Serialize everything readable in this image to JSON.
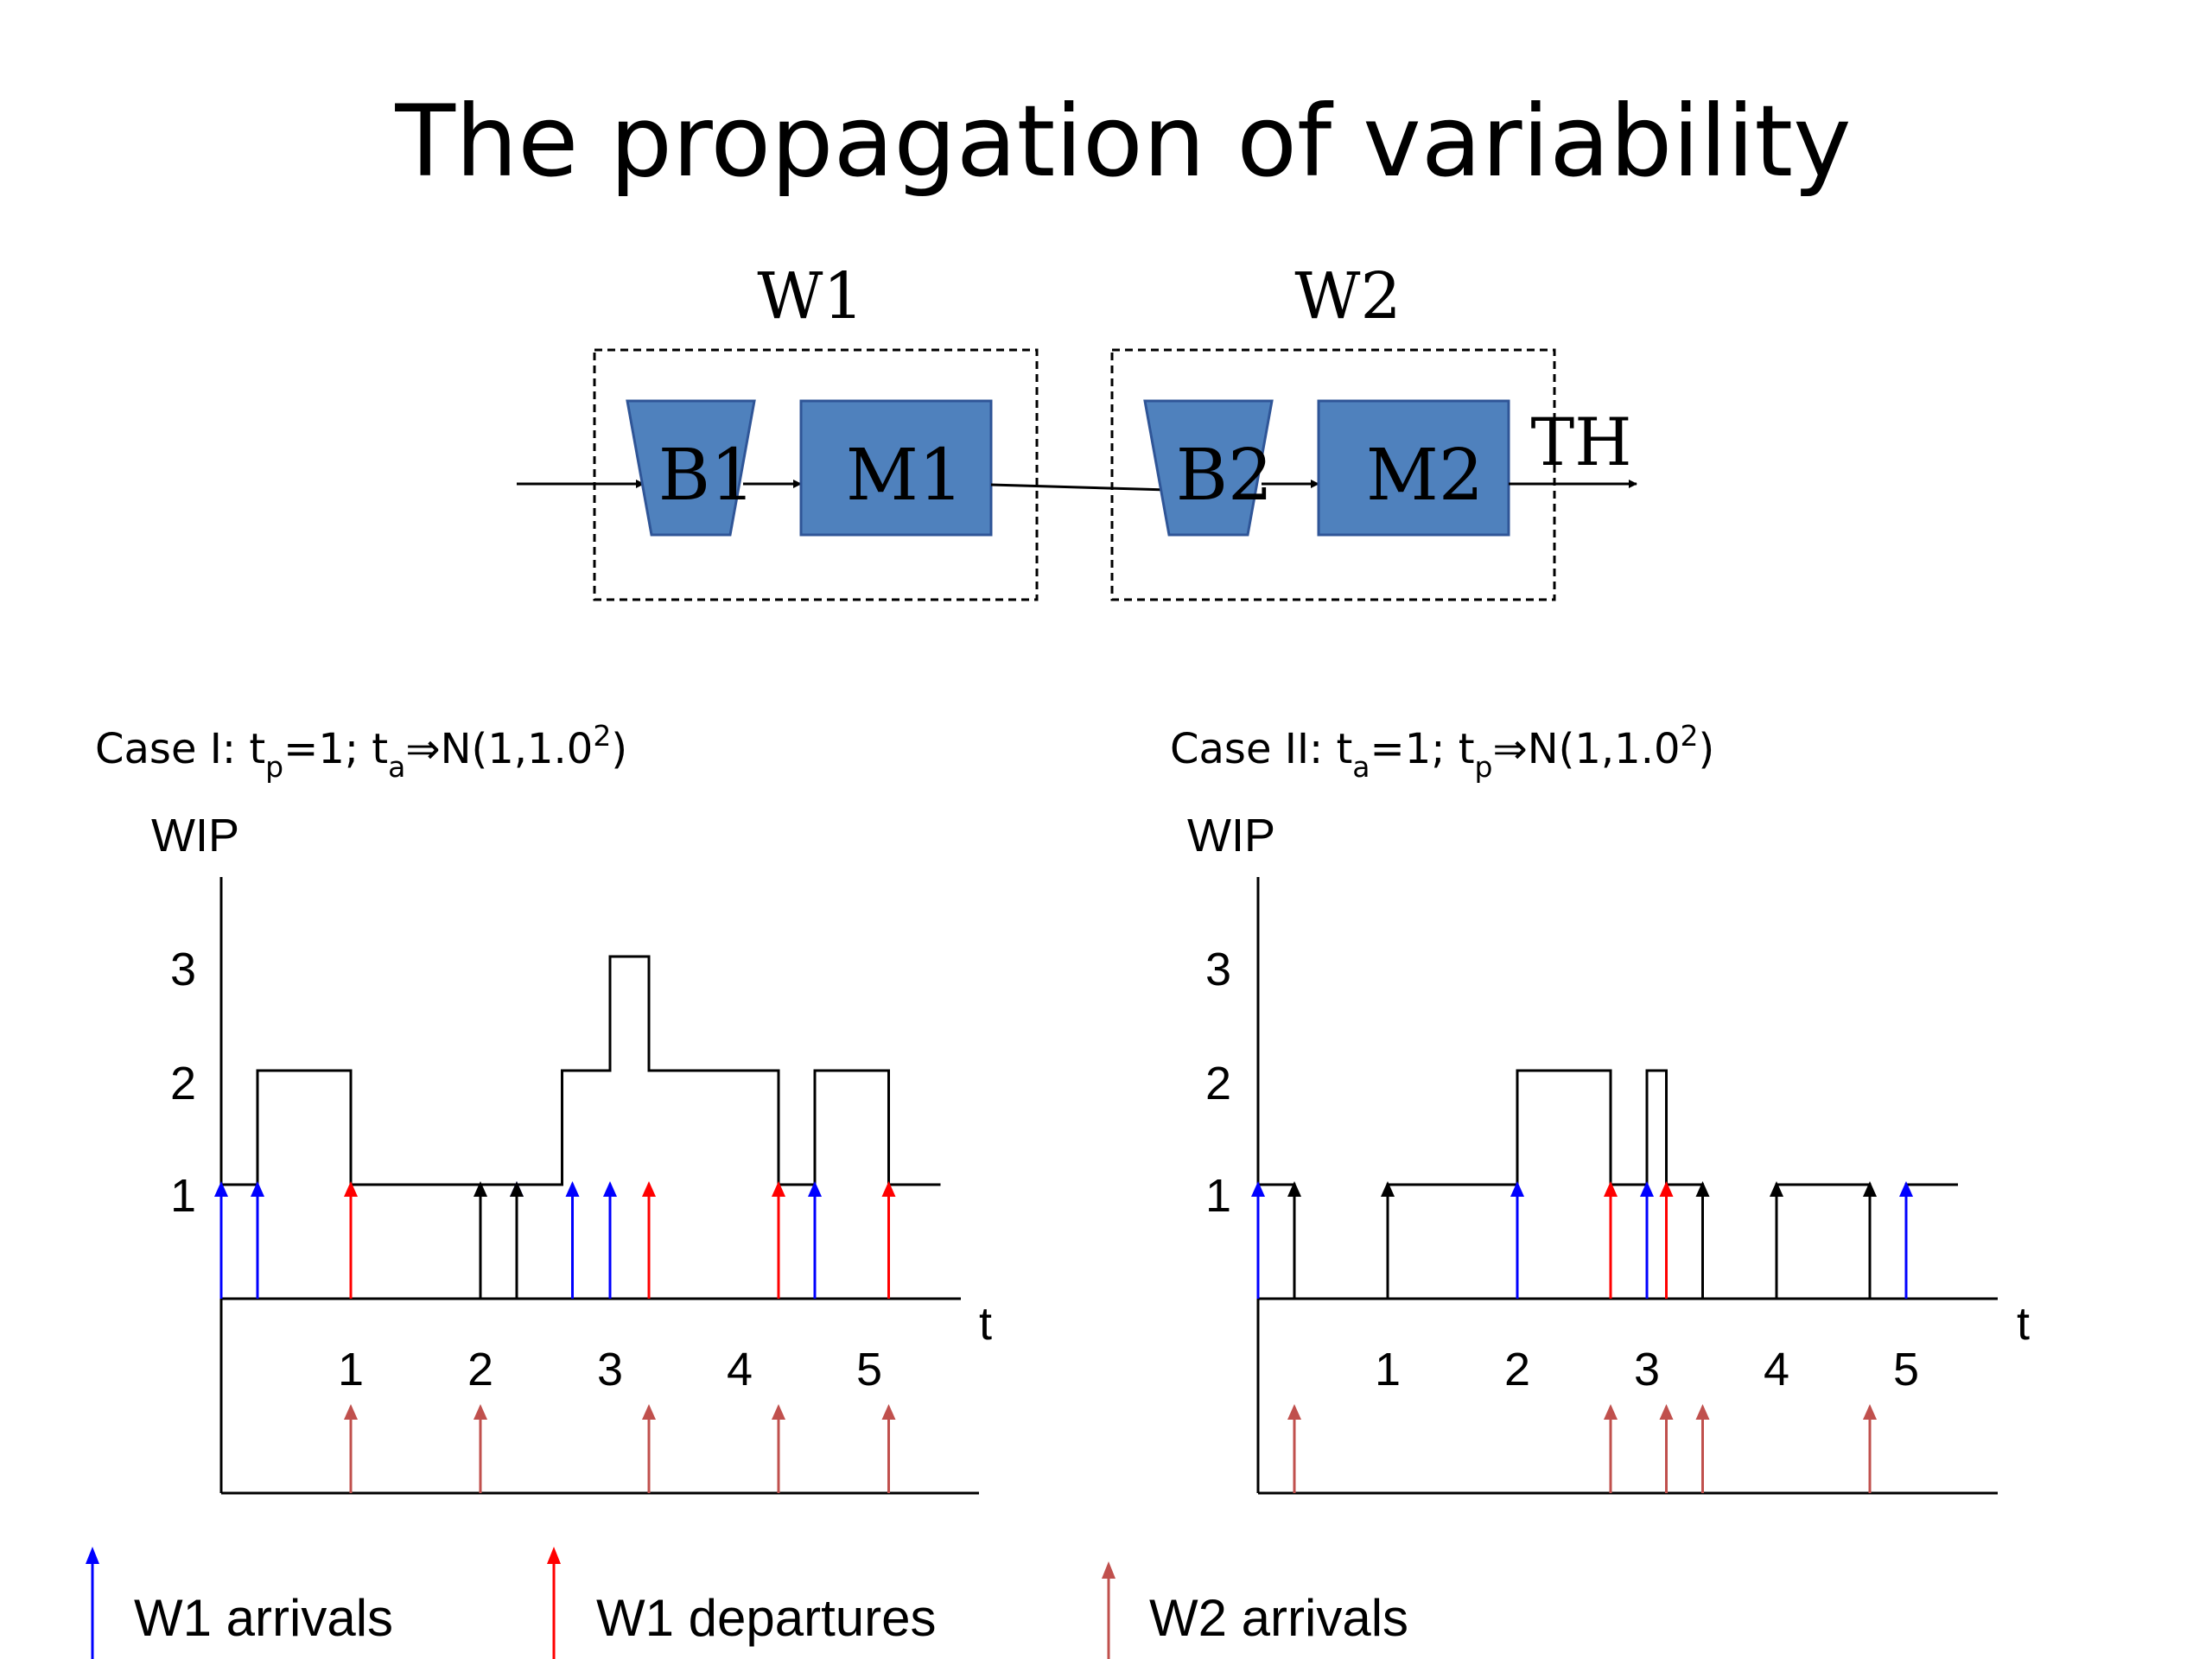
{
  "slide": {
    "title": "The propagation of variability"
  },
  "system": {
    "workstations": [
      {
        "label": "W1",
        "buffer": "B1",
        "machine": "M1"
      },
      {
        "label": "W2",
        "buffer": "B2",
        "machine": "M2"
      }
    ],
    "output_label": "TH",
    "box_color": "#4f81bd"
  },
  "colors": {
    "w1_arrivals": "#0000ff",
    "w1_departures": "#ff0000",
    "w2_arrivals": "#c0504d",
    "coincident": "#000000"
  },
  "chart_data": [
    {
      "type": "line",
      "case_label": {
        "prefix": "Case I: t",
        "sub1": "p",
        "mid": "=1; t",
        "sub2": "a",
        "rest": "⇒N(1,1.0",
        "sup": "2",
        "end": ")"
      },
      "ylabel": "WIP",
      "xlabel": "t",
      "y_ticks": [
        "1",
        "2",
        "3"
      ],
      "x_ticks": [
        "1",
        "2",
        "3",
        "4",
        "5"
      ],
      "xlim": [
        -1,
        4.85
      ],
      "ylim": [
        0,
        3.6
      ],
      "wip_step": [
        [
          -1,
          1
        ],
        [
          -0.72,
          2
        ],
        [
          0.0,
          1
        ],
        [
          1.0,
          1
        ],
        [
          1.2,
          1
        ],
        [
          1.63,
          2
        ],
        [
          2.0,
          3
        ],
        [
          2.3,
          2
        ],
        [
          3.3,
          1
        ],
        [
          3.58,
          2
        ],
        [
          4.15,
          1
        ],
        [
          4.55,
          1
        ]
      ],
      "w1_arrivals": [
        -1.0,
        -0.72,
        1.28,
        1.71,
        2.0,
        3.58
      ],
      "w1_departures": [
        0.0,
        2.3,
        3.3,
        4.15
      ],
      "coincident_events": [
        1.0,
        1.28
      ],
      "w2_arrivals": [
        0.0,
        1.0,
        2.3,
        3.3,
        4.15
      ]
    },
    {
      "type": "line",
      "case_label": {
        "prefix": "Case II: t",
        "sub1": "a",
        "mid": "=1; t",
        "sub2": "p",
        "rest": "⇒N(1,1.0",
        "sup": "2",
        "end": ")"
      },
      "ylabel": "WIP",
      "xlabel": "t",
      "y_ticks": [
        "1",
        "2",
        "3"
      ],
      "x_ticks": [
        "1",
        "2",
        "3",
        "4",
        "5"
      ],
      "xlim": [
        -1,
        4.85
      ],
      "ylim": [
        0,
        3.6
      ],
      "wip_step": [
        [
          -1,
          1
        ],
        [
          -0.72,
          0
        ],
        [
          0.0,
          1
        ],
        [
          1.0,
          2
        ],
        [
          1.72,
          1
        ],
        [
          2.0,
          2
        ],
        [
          2.15,
          1
        ],
        [
          2.43,
          0
        ],
        [
          3.0,
          1
        ],
        [
          3.72,
          0
        ],
        [
          4.0,
          1
        ],
        [
          4.4,
          1
        ]
      ],
      "w1_arrivals": [
        -1.0,
        1.0,
        2.0,
        4.0
      ],
      "w1_departures": [
        1.72,
        2.15
      ],
      "coincident_events": [
        -0.72,
        0.0,
        2.43,
        3.0,
        3.72
      ],
      "w2_arrivals": [
        -0.72,
        1.72,
        2.15,
        2.43,
        3.72
      ]
    }
  ],
  "legend": {
    "items": [
      {
        "label": "W1 arrivals",
        "color": "#0000ff"
      },
      {
        "label": "W1 departures",
        "color": "#ff0000"
      },
      {
        "label": "W2 arrivals",
        "color": "#c0504d"
      }
    ]
  }
}
